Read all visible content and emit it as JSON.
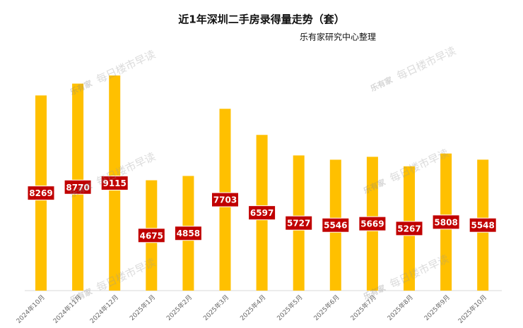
{
  "chart_data": {
    "type": "bar",
    "title": "近1年深圳二手房录得量走势（套）",
    "subtitle": "乐有家研究中心整理",
    "watermark": "每日楼市早读",
    "watermark_logo": "乐有家",
    "categories": [
      "2024年10月",
      "2024年11月",
      "2024年12月",
      "2025年1月",
      "2025年2月",
      "2025年3月",
      "2025年4月",
      "2025年5月",
      "2025年6月",
      "2025年7月",
      "2025年8月",
      "2025年9月",
      "2025年10月"
    ],
    "values": [
      8269,
      8770,
      9115,
      4675,
      4858,
      7703,
      6597,
      5727,
      5546,
      5669,
      5267,
      5808,
      5548
    ],
    "color": "#FFC000",
    "label_color": "#C00000"
  }
}
